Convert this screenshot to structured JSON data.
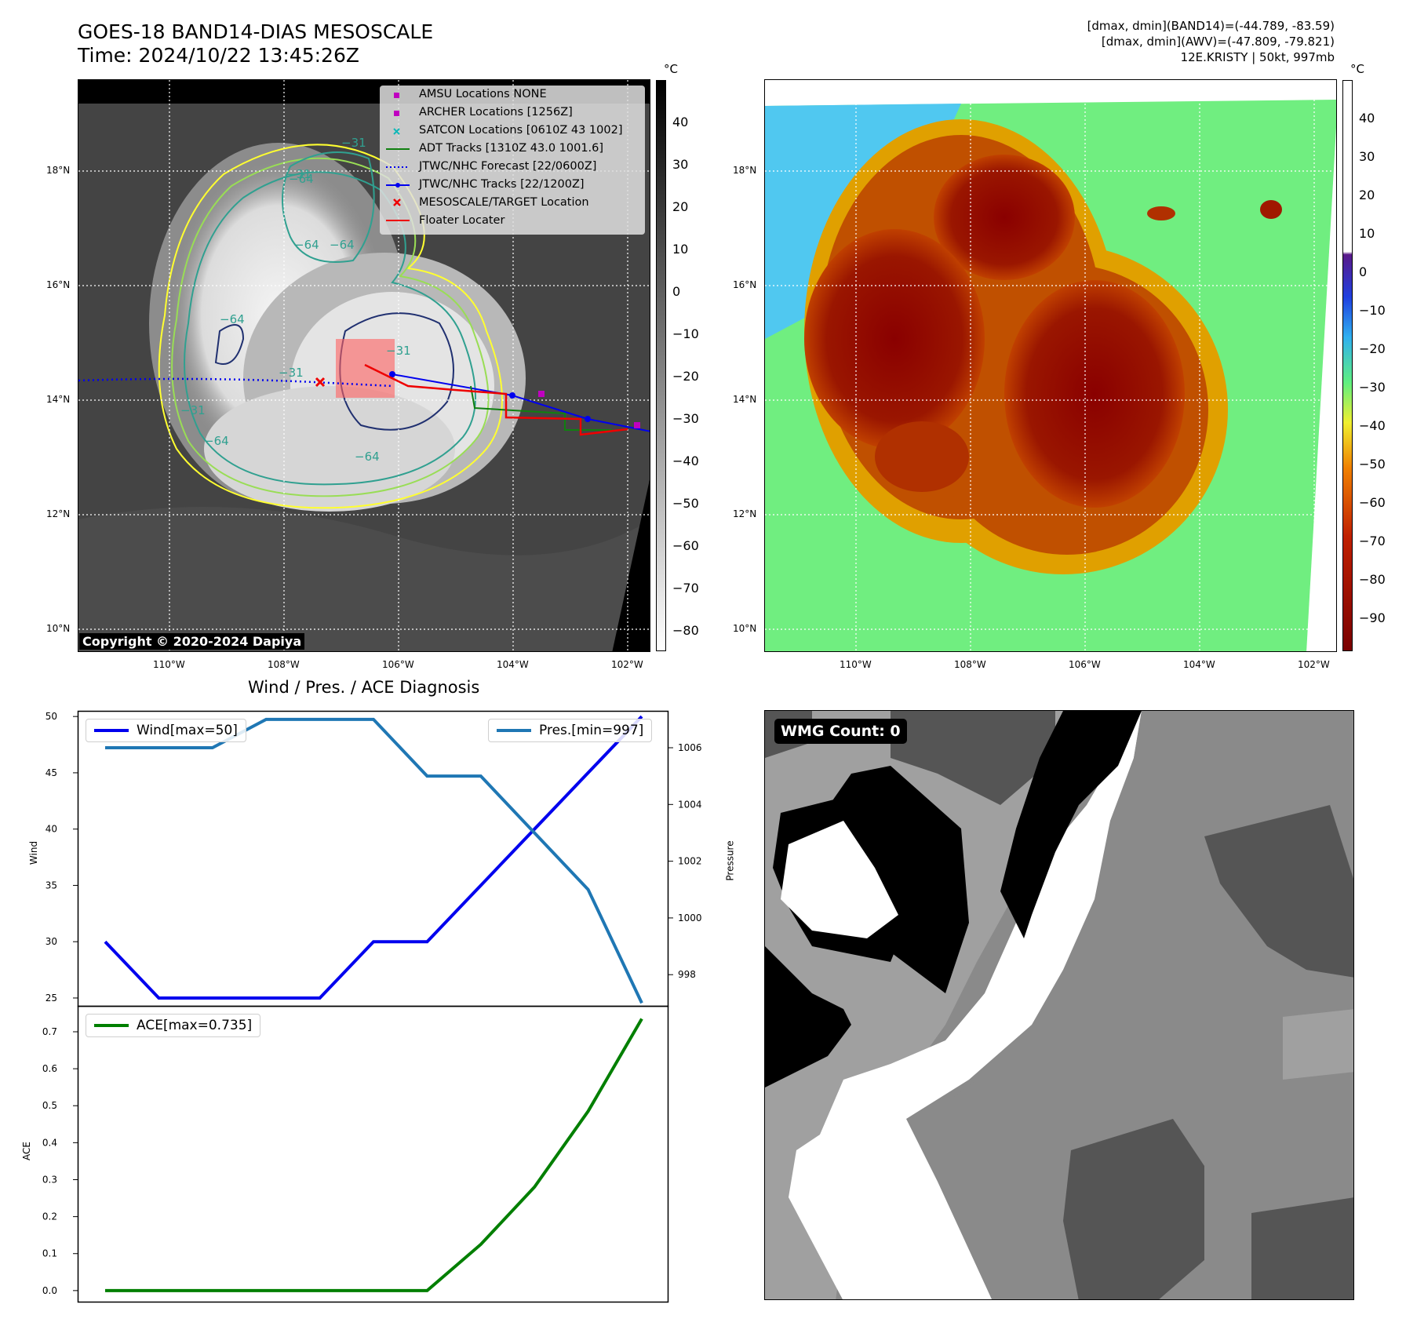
{
  "header": {
    "title_line1": "GOES-18 BAND14-DIAS MESOSCALE",
    "title_line2": "Time: 2024/10/22 13:45:26Z",
    "info_line1": "[dmax, dmin](BAND14)=(-44.789, -83.59)",
    "info_line2": "[dmax, dmin](AWV)=(-47.809, -79.821)",
    "info_line3": "12E.KRISTY | 50kt, 997mb"
  },
  "map": {
    "lat_labels": [
      "18°N",
      "16°N",
      "14°N",
      "12°N",
      "10°N"
    ],
    "lon_labels": [
      "110°W",
      "108°W",
      "106°W",
      "104°W",
      "102°W"
    ],
    "copyright": "Copyright © 2020-2024 Dapiya",
    "contour_labels": [
      "−31",
      "−64",
      "−64",
      "−64",
      "−64",
      "−31",
      "−64",
      "−64",
      "−31",
      "−31",
      "−31"
    ],
    "legend": [
      {
        "label": "AMSU Locations NONE",
        "color": "#c000c0",
        "icon": "square-marker"
      },
      {
        "label": "ARCHER Locations [1256Z]",
        "color": "#c000c0",
        "icon": "square-marker"
      },
      {
        "label": "SATCON Locations [0610Z 43 1002]",
        "color": "#10b8b8",
        "icon": "x-marker"
      },
      {
        "label": "ADT Tracks [1310Z 43.0 1001.6]",
        "color": "#108010",
        "icon": "solid-line"
      },
      {
        "label": "JTWC/NHC Forecast [22/0600Z]",
        "color": "#0000ee",
        "icon": "dotted-line"
      },
      {
        "label": "JTWC/NHC Tracks [22/1200Z]",
        "color": "#0000ee",
        "icon": "dot-line"
      },
      {
        "label": "MESOSCALE/TARGET Location",
        "color": "#ee0000",
        "icon": "x-marker"
      },
      {
        "label": "Floater Locater",
        "color": "#ee0000",
        "icon": "solid-line"
      }
    ],
    "colorbar_left": {
      "unit": "°C",
      "labels": [
        "40",
        "30",
        "20",
        "10",
        "0",
        "−10",
        "−20",
        "−30",
        "−40",
        "−50",
        "−60",
        "−70",
        "−80"
      ]
    },
    "colorbar_right": {
      "unit": "°C",
      "labels": [
        "40",
        "30",
        "20",
        "10",
        "0",
        "−10",
        "−20",
        "−30",
        "−40",
        "−50",
        "−60",
        "−70",
        "−80",
        "−90"
      ]
    }
  },
  "diagnosis": {
    "title": "Wind / Pres. / ACE Diagnosis",
    "wind_axis_label": "Wind",
    "pressure_axis_label": "Pressure",
    "ace_axis_label": "ACE",
    "wind_ticks": [
      "50",
      "45",
      "40",
      "35",
      "30",
      "25"
    ],
    "pressure_ticks": [
      "1006",
      "1004",
      "1002",
      "1000",
      "998"
    ],
    "ace_ticks": [
      "0.7",
      "0.6",
      "0.5",
      "0.4",
      "0.3",
      "0.2",
      "0.1",
      "0.0"
    ],
    "wind_legend": "Wind[max=50]",
    "pressure_legend": "Pres.[min=997]",
    "ace_legend": "ACE[max=0.735]"
  },
  "wmg": {
    "label": "WMG Count: 0"
  },
  "chart_data": [
    {
      "type": "line",
      "title": "Wind / Pres. / ACE Diagnosis",
      "ylabel": "Wind",
      "ylim": [
        24.3,
        50.5
      ],
      "series": [
        {
          "name": "Wind[max=50]",
          "color": "#0000ee",
          "values": [
            30,
            25,
            25,
            25,
            25,
            30,
            30,
            35,
            40,
            45,
            50
          ]
        }
      ],
      "x": [
        0,
        1,
        2,
        3,
        4,
        5,
        6,
        7,
        8,
        9,
        10
      ]
    },
    {
      "type": "line",
      "ylabel": "Pressure",
      "ylim": [
        996.9,
        1007.3
      ],
      "series": [
        {
          "name": "Pres.[min=997]",
          "color": "#1f77b4",
          "values": [
            1006,
            1006,
            1006,
            1007,
            1007,
            1007,
            1005,
            1005,
            1003,
            1001,
            997
          ]
        }
      ],
      "x": [
        0,
        1,
        2,
        3,
        4,
        5,
        6,
        7,
        8,
        9,
        10
      ]
    },
    {
      "type": "line",
      "ylabel": "ACE",
      "ylim": [
        -0.03,
        0.77
      ],
      "series": [
        {
          "name": "ACE[max=0.735]",
          "color": "#007f00",
          "values": [
            0,
            0,
            0,
            0,
            0,
            0,
            0,
            0.125,
            0.28,
            0.485,
            0.735
          ]
        }
      ],
      "x": [
        0,
        1,
        2,
        3,
        4,
        5,
        6,
        7,
        8,
        9,
        10
      ]
    }
  ]
}
